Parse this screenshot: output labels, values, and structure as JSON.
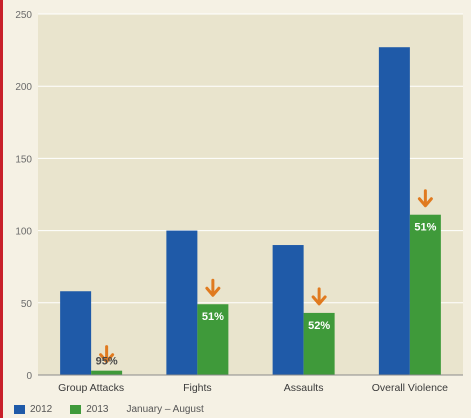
{
  "chart_data": {
    "type": "bar",
    "categories": [
      "Group Attacks",
      "Fights",
      "Assaults",
      "Overall Violence"
    ],
    "series": [
      {
        "name": "2012",
        "values": [
          58,
          100,
          90,
          227
        ],
        "color": "#1f5aa8"
      },
      {
        "name": "2013",
        "values": [
          3,
          49,
          43,
          111
        ],
        "color": "#3f9a3a"
      }
    ],
    "annotations": [
      "95%",
      "51%",
      "52%",
      "51%"
    ],
    "annotation_icon": "down-arrow-icon",
    "annotation_color": "#e07a1f",
    "yticks": [
      "0",
      "50",
      "100",
      "150",
      "200",
      "250"
    ],
    "ylim": [
      0,
      250
    ],
    "grid": true,
    "legend_note": "January – August",
    "xlabel": "",
    "ylabel": ""
  }
}
